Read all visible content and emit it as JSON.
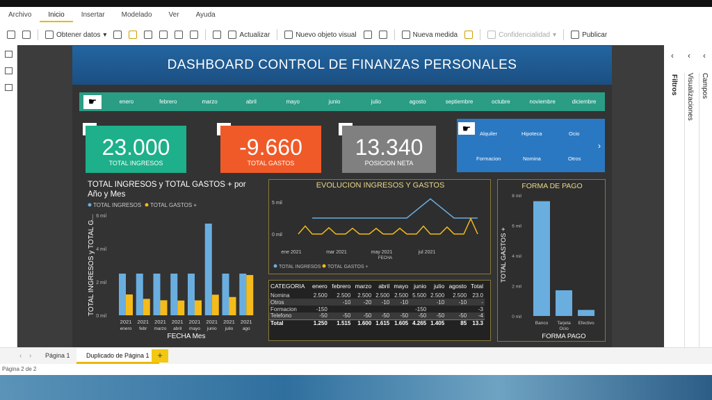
{
  "menu": [
    "Archivo",
    "Inicio",
    "Insertar",
    "Modelado",
    "Ver",
    "Ayuda"
  ],
  "toolbar": {
    "obtener": "Obtener datos",
    "actualizar": "Actualizar",
    "nuevo_visual": "Nuevo objeto visual",
    "nueva_medida": "Nueva medida",
    "confidencialidad": "Confidencialidad",
    "publicar": "Publicar"
  },
  "dashboard": {
    "title": "DASHBOARD CONTROL DE FINANZAS PERSONALES",
    "months": [
      "enero",
      "febrero",
      "marzo",
      "abril",
      "mayo",
      "junio",
      "julio",
      "agosto",
      "septiembre",
      "octubre",
      "noviembre",
      "diciembre"
    ],
    "kpis": [
      {
        "value": "23.000",
        "label": "TOTAL INGRESOS",
        "color": "#1db08a"
      },
      {
        "value": "-9.660",
        "label": "TOTAL GASTOS",
        "color": "#f05a28"
      },
      {
        "value": "13.340",
        "label": "POSICION NETA",
        "color": "#808080"
      }
    ],
    "categories": [
      "Alquiler",
      "Hipoteca",
      "Ocio",
      "Formacion",
      "Nomina",
      "Otros"
    ]
  },
  "chart_data": [
    {
      "type": "bar",
      "title": "TOTAL INGRESOS y TOTAL GASTOS + por Año y Mes",
      "xlabel": "FECHA Mes",
      "ylabel": "TOTAL INGRESOS y TOTAL G...",
      "yticks": [
        "0 mil",
        "2 mil",
        "4 mil",
        "6 mil"
      ],
      "ylim": [
        0,
        6000
      ],
      "categories": [
        [
          "2021",
          "enero"
        ],
        [
          "2021",
          "febr"
        ],
        [
          "2021",
          "marzo"
        ],
        [
          "2021",
          "abril"
        ],
        [
          "2021",
          "mayo"
        ],
        [
          "2021",
          "junio"
        ],
        [
          "2021",
          "julio"
        ],
        [
          "2021",
          "ago"
        ]
      ],
      "series": [
        {
          "name": "TOTAL INGRESOS",
          "color": "#6aaee0",
          "values": [
            2500,
            2500,
            2500,
            2500,
            2500,
            5500,
            2500,
            2500
          ]
        },
        {
          "name": "TOTAL GASTOS +",
          "color": "#f5bb1a",
          "values": [
            1250,
            985,
            900,
            885,
            895,
            1235,
            1095,
            2415
          ]
        }
      ]
    },
    {
      "type": "line",
      "title": "EVOLUCION INGRESOS Y GASTOS",
      "xlabel": "FECHA",
      "yticks": [
        "0 mil",
        "5 mil"
      ],
      "ylim": [
        0,
        6000
      ],
      "xticks": [
        "ene 2021",
        "mar 2021",
        "may 2021",
        "jul 2021"
      ],
      "series": [
        {
          "name": "TOTAL INGRESOS",
          "color": "#6aaee0",
          "values": [
            2500,
            2500,
            2500,
            2500,
            2500,
            5500,
            2500,
            2500
          ]
        },
        {
          "name": "TOTAL GASTOS +",
          "color": "#f5bb1a",
          "values": [
            1250,
            985,
            900,
            885,
            895,
            1235,
            1095,
            2415
          ]
        }
      ]
    },
    {
      "type": "bar",
      "title": "FORMA DE PAGO",
      "xlabel": "FORMA PAGO",
      "ylabel": "TOTAL GASTOS +",
      "yticks": [
        "0 mil",
        "2 mil",
        "4 mil",
        "6 mil",
        "8 mil"
      ],
      "ylim": [
        0,
        8000
      ],
      "categories": [
        "Banco",
        "Tarjeta Ocio",
        "Efectivo"
      ],
      "values": [
        7600,
        1700,
        400
      ],
      "color": "#6aaee0"
    },
    {
      "type": "table",
      "columns": [
        "CATEGORIA",
        "enero",
        "febrero",
        "marzo",
        "abril",
        "mayo",
        "junio",
        "julio",
        "agosto",
        "Total"
      ],
      "rows": [
        [
          "Nomina",
          "2.500",
          "2.500",
          "2.500",
          "2.500",
          "2.500",
          "5.500",
          "2.500",
          "2.500",
          "23.0"
        ],
        [
          "Otros",
          "",
          "-10",
          "-20",
          "-10",
          "-10",
          "",
          "-10",
          "-10",
          "-"
        ],
        [
          "Formacion",
          "-150",
          "",
          "",
          "",
          "",
          "-150",
          "",
          "",
          "-3"
        ],
        [
          "Telefono",
          "-50",
          "-50",
          "-50",
          "-50",
          "-50",
          "-50",
          "-50",
          "-50",
          "-4"
        ],
        [
          "Total",
          "1.250",
          "1.515",
          "1.600",
          "1.615",
          "1.605",
          "4.265",
          "1.405",
          "85",
          "13.3"
        ]
      ]
    }
  ],
  "panes": {
    "filtros": "Filtros",
    "visualizaciones": "Visualizaciones",
    "campos": "Campos"
  },
  "tabs": [
    "Página 1",
    "Duplicado de Página 1"
  ],
  "status": "Página 2 de 2"
}
